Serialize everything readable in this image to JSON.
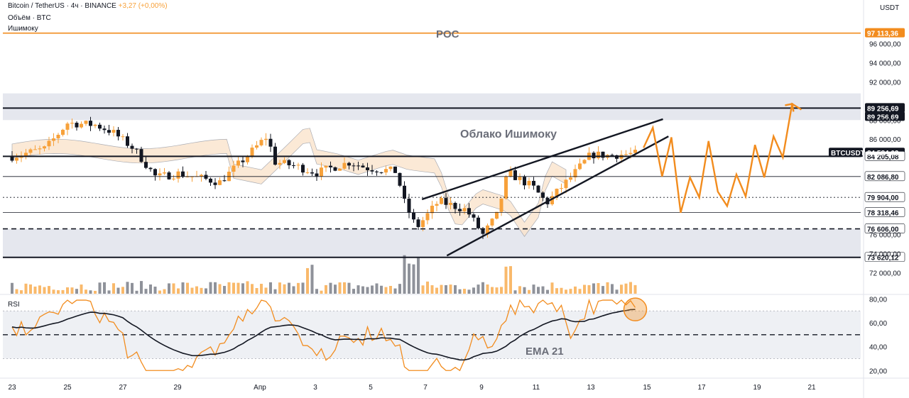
{
  "header": {
    "symbol_line": "Bitcoin / TetherUS · 4ч · BINANCE",
    "change": "+3,27 (+0,00%)",
    "volume_label": "Объём · BTC",
    "ichimoku_label": "Ишимоку",
    "currency": "USDT"
  },
  "annotations": {
    "poc": "POC",
    "cloud": "Облако Ишимоку",
    "ema": "EMA 21",
    "rsi": "RSI"
  },
  "price_labels": [
    {
      "price": 97113.36,
      "text": "97 113,36",
      "style": "orange"
    },
    {
      "price": 89256.69,
      "text": "89 256,69",
      "style": "black"
    },
    {
      "price": 89256.69,
      "text": "89 256,69",
      "style": "black",
      "offset": 1
    },
    {
      "price": 84584.03,
      "text": "84 584,03",
      "style": "black"
    },
    {
      "price": 84205.08,
      "text": "84 205,08",
      "style": "plain"
    },
    {
      "price": 82086.8,
      "text": "82 086,80",
      "style": "plain"
    },
    {
      "price": 79904.0,
      "text": "79 904,00",
      "style": "plain"
    },
    {
      "price": 78318.46,
      "text": "78 318,46",
      "style": "plain"
    },
    {
      "price": 76606.0,
      "text": "76 606,00",
      "style": "plain"
    },
    {
      "price": 73620.12,
      "text": "73 620,12",
      "style": "plain"
    }
  ],
  "symbol_tag": "BTCUSDT",
  "colors": {
    "up": "#f7a13a",
    "down": "#131722",
    "accent": "#f28c1e",
    "cloud": "#fbe4cc",
    "cloud_bear": "#d1d4dc",
    "zone": "#e0e3eb"
  },
  "chart_data": [
    {
      "type": "candlestick",
      "title": "Bitcoin / TetherUS · 4ч · BINANCE",
      "x_ticks": [
        "23",
        "25",
        "27",
        "29",
        "Апр",
        "3",
        "5",
        "7",
        "9",
        "11",
        "13",
        "15",
        "17",
        "19",
        "21"
      ],
      "y_ticks": [
        "96 000,00",
        "94 000,00",
        "92 000,00",
        "88 000,00",
        "86 000,00",
        "76 000,00",
        "74 000,00",
        "72 000,00"
      ],
      "ylim": [
        71000,
        98500
      ],
      "levels": [
        {
          "price": 97113.36,
          "style": "orange"
        },
        {
          "price": 89256.69,
          "style": "solid"
        },
        {
          "price": 84205.08,
          "style": "solid"
        },
        {
          "price": 82086.8,
          "style": "thin"
        },
        {
          "price": 79904.0,
          "style": "dotted"
        },
        {
          "price": 78318.46,
          "style": "thin"
        },
        {
          "price": 76606.0,
          "style": "dashed"
        },
        {
          "price": 73620.12,
          "style": "solid"
        }
      ],
      "zones": [
        [
          88000,
          90800
        ],
        [
          73620.12,
          76606
        ]
      ],
      "projection": [
        [
          85100,
          87200,
          82100,
          86200,
          78300,
          82000,
          79900,
          85800,
          80500,
          79000,
          82300,
          80000,
          85400,
          82000,
          86300,
          84100,
          89700,
          89100
        ]
      ]
    },
    {
      "type": "line",
      "title": "RSI",
      "y_ticks": [
        "80,00",
        "60,00",
        "40,00",
        "20,00"
      ],
      "ylim": [
        16,
        82
      ],
      "bands": [
        30,
        50,
        70
      ],
      "series": [
        {
          "name": "EMA 21"
        }
      ]
    }
  ]
}
